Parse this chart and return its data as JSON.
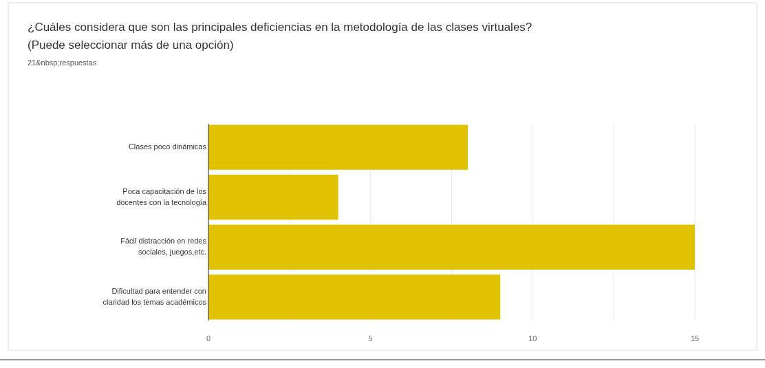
{
  "chart_data": {
    "type": "bar",
    "orientation": "horizontal",
    "title": "¿Cuáles considera que son las principales deficiencias en la metodología de las clases virtuales? (Puede seleccionar más de una opción)",
    "subtitle": "21&nbsp;respuestas",
    "categories": [
      "Clases poco dinámicas",
      "Poca capacitación de los docentes con la tecnología",
      "Fácil distracción en redes sociales, juegos,etc.",
      "Dificultad para entender con claridad los temas académicos"
    ],
    "values": [
      8,
      4,
      15,
      9
    ],
    "color": "#e0c200",
    "xlim": [
      0,
      15
    ],
    "xticks": [
      0,
      {
        "value": 2.5,
        "label": null
      },
      5,
      {
        "value": 7.5,
        "label": null
      },
      10,
      {
        "value": 12.5,
        "label": null
      },
      15
    ],
    "grid": "x"
  }
}
